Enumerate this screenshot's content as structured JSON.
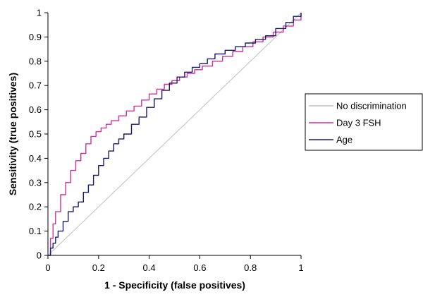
{
  "chart_data": {
    "type": "line",
    "title": "",
    "xlabel": "1 - Specificity (false positives)",
    "ylabel": "Sensitivity (true positives)",
    "xlim": [
      0,
      1
    ],
    "ylim": [
      0,
      1
    ],
    "x_ticks": [
      "0",
      "0.2",
      "0.4",
      "0.6",
      "0.8",
      "1"
    ],
    "y_ticks": [
      "0",
      "0.1",
      "0.2",
      "0.3",
      "0.4",
      "0.5",
      "0.6",
      "0.7",
      "0.8",
      "0.9",
      "1"
    ],
    "grid": false,
    "legend_position": "right",
    "series": [
      {
        "name": "No discrimination",
        "color": "#c0c0c0",
        "x": [
          0,
          1
        ],
        "y": [
          0,
          1
        ]
      },
      {
        "name": "Day 3 FSH",
        "color": "#cc3399",
        "x": [
          0,
          0.01,
          0.02,
          0.03,
          0.05,
          0.07,
          0.09,
          0.11,
          0.13,
          0.15,
          0.17,
          0.19,
          0.21,
          0.23,
          0.25,
          0.28,
          0.31,
          0.34,
          0.37,
          0.4,
          0.43,
          0.46,
          0.49,
          0.52,
          0.55,
          0.58,
          0.61,
          0.65,
          0.69,
          0.73,
          0.77,
          0.81,
          0.85,
          0.89,
          0.93,
          0.97,
          1.0
        ],
        "y": [
          0,
          0.07,
          0.13,
          0.18,
          0.25,
          0.3,
          0.35,
          0.39,
          0.42,
          0.46,
          0.49,
          0.51,
          0.525,
          0.54,
          0.555,
          0.575,
          0.595,
          0.615,
          0.64,
          0.665,
          0.685,
          0.705,
          0.72,
          0.735,
          0.75,
          0.765,
          0.78,
          0.8,
          0.82,
          0.84,
          0.86,
          0.88,
          0.9,
          0.92,
          0.945,
          0.97,
          1.0
        ]
      },
      {
        "name": "Age",
        "color": "#1a1a6e",
        "x": [
          0,
          0.01,
          0.02,
          0.03,
          0.04,
          0.06,
          0.08,
          0.1,
          0.12,
          0.14,
          0.16,
          0.18,
          0.2,
          0.22,
          0.24,
          0.26,
          0.28,
          0.3,
          0.33,
          0.36,
          0.39,
          0.42,
          0.45,
          0.48,
          0.51,
          0.54,
          0.57,
          0.6,
          0.63,
          0.66,
          0.7,
          0.74,
          0.78,
          0.82,
          0.86,
          0.9,
          0.94,
          0.97,
          1.0
        ],
        "y": [
          0,
          0.03,
          0.05,
          0.075,
          0.1,
          0.14,
          0.18,
          0.2,
          0.22,
          0.26,
          0.29,
          0.33,
          0.37,
          0.4,
          0.43,
          0.46,
          0.48,
          0.5,
          0.54,
          0.57,
          0.61,
          0.645,
          0.68,
          0.71,
          0.735,
          0.755,
          0.775,
          0.79,
          0.81,
          0.83,
          0.845,
          0.86,
          0.875,
          0.89,
          0.905,
          0.935,
          0.96,
          0.985,
          1.0
        ]
      }
    ]
  }
}
